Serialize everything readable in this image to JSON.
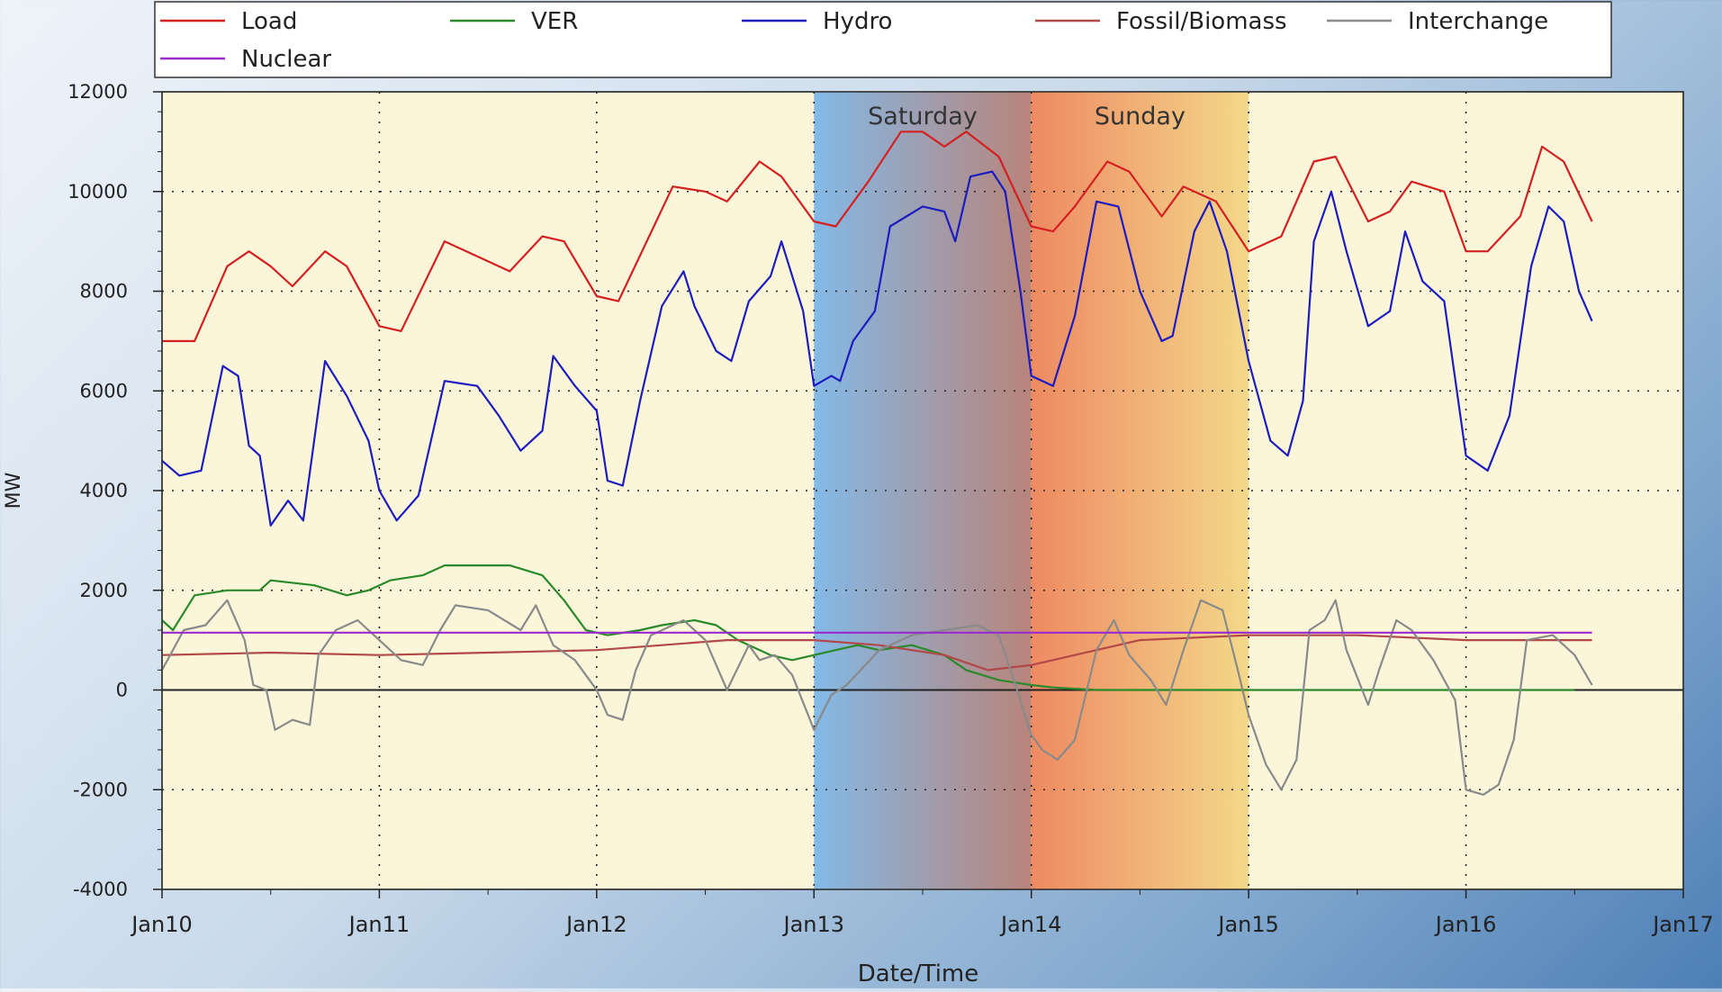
{
  "chart_data": {
    "type": "line",
    "xlabel": "Date/Time",
    "ylabel": "MW",
    "x_ticks": [
      "Jan10",
      "Jan11",
      "Jan12",
      "Jan13",
      "Jan14",
      "Jan15",
      "Jan16",
      "Jan17"
    ],
    "xlim": [
      0,
      7
    ],
    "ylim": [
      -4000,
      12000
    ],
    "y_ticks": [
      12000,
      10000,
      8000,
      6000,
      4000,
      2000,
      0,
      -2000,
      -4000
    ],
    "grid": "dotted",
    "legend_position": "top",
    "background_color": "#fbf6da",
    "zero_line": 0,
    "annotations": [
      {
        "label": "Saturday",
        "start": 3,
        "end": 4,
        "color_from": "#84b9e6",
        "color_to": "#b8847a"
      },
      {
        "label": "Sunday",
        "start": 4,
        "end": 5,
        "color_from": "#ee8a62",
        "color_to": "#f3d88a"
      }
    ],
    "series": [
      {
        "name": "Load",
        "color": "#d42020",
        "points": [
          [
            0,
            7000
          ],
          [
            0.15,
            7000
          ],
          [
            0.3,
            8500
          ],
          [
            0.4,
            8800
          ],
          [
            0.5,
            8500
          ],
          [
            0.6,
            8100
          ],
          [
            0.75,
            8800
          ],
          [
            0.85,
            8500
          ],
          [
            1.0,
            7300
          ],
          [
            1.1,
            7200
          ],
          [
            1.3,
            9000
          ],
          [
            1.45,
            8700
          ],
          [
            1.6,
            8400
          ],
          [
            1.75,
            9100
          ],
          [
            1.85,
            9000
          ],
          [
            2.0,
            7900
          ],
          [
            2.1,
            7800
          ],
          [
            2.35,
            10100
          ],
          [
            2.5,
            10000
          ],
          [
            2.6,
            9800
          ],
          [
            2.75,
            10600
          ],
          [
            2.85,
            10300
          ],
          [
            3.0,
            9400
          ],
          [
            3.1,
            9300
          ],
          [
            3.25,
            10200
          ],
          [
            3.4,
            11200
          ],
          [
            3.5,
            11200
          ],
          [
            3.6,
            10900
          ],
          [
            3.7,
            11200
          ],
          [
            3.85,
            10700
          ],
          [
            4.0,
            9300
          ],
          [
            4.1,
            9200
          ],
          [
            4.2,
            9700
          ],
          [
            4.35,
            10600
          ],
          [
            4.45,
            10400
          ],
          [
            4.6,
            9500
          ],
          [
            4.7,
            10100
          ],
          [
            4.85,
            9800
          ],
          [
            5.0,
            8800
          ],
          [
            5.15,
            9100
          ],
          [
            5.3,
            10600
          ],
          [
            5.4,
            10700
          ],
          [
            5.55,
            9400
          ],
          [
            5.65,
            9600
          ],
          [
            5.75,
            10200
          ],
          [
            5.9,
            10000
          ],
          [
            6.0,
            8800
          ],
          [
            6.1,
            8800
          ],
          [
            6.25,
            9500
          ],
          [
            6.35,
            10900
          ],
          [
            6.45,
            10600
          ],
          [
            6.58,
            9400
          ]
        ]
      },
      {
        "name": "VER",
        "color": "#2a8a2a",
        "points": [
          [
            0,
            1400
          ],
          [
            0.05,
            1200
          ],
          [
            0.15,
            1900
          ],
          [
            0.3,
            2000
          ],
          [
            0.45,
            2000
          ],
          [
            0.5,
            2200
          ],
          [
            0.7,
            2100
          ],
          [
            0.85,
            1900
          ],
          [
            0.95,
            2000
          ],
          [
            1.05,
            2200
          ],
          [
            1.2,
            2300
          ],
          [
            1.3,
            2500
          ],
          [
            1.45,
            2500
          ],
          [
            1.6,
            2500
          ],
          [
            1.75,
            2300
          ],
          [
            1.85,
            1800
          ],
          [
            1.95,
            1200
          ],
          [
            2.05,
            1100
          ],
          [
            2.2,
            1200
          ],
          [
            2.3,
            1300
          ],
          [
            2.45,
            1400
          ],
          [
            2.55,
            1300
          ],
          [
            2.65,
            1000
          ],
          [
            2.8,
            700
          ],
          [
            2.9,
            600
          ],
          [
            3.0,
            700
          ],
          [
            3.1,
            800
          ],
          [
            3.2,
            900
          ],
          [
            3.3,
            800
          ],
          [
            3.45,
            900
          ],
          [
            3.6,
            700
          ],
          [
            3.7,
            400
          ],
          [
            3.85,
            200
          ],
          [
            4.0,
            100
          ],
          [
            4.1,
            50
          ],
          [
            4.3,
            0
          ],
          [
            4.6,
            0
          ],
          [
            5.0,
            0
          ],
          [
            5.5,
            0
          ],
          [
            6.0,
            0
          ],
          [
            6.5,
            0
          ]
        ]
      },
      {
        "name": "Hydro",
        "color": "#1c1cc0",
        "points": [
          [
            0,
            4600
          ],
          [
            0.08,
            4300
          ],
          [
            0.18,
            4400
          ],
          [
            0.28,
            6500
          ],
          [
            0.35,
            6300
          ],
          [
            0.4,
            4900
          ],
          [
            0.45,
            4700
          ],
          [
            0.5,
            3300
          ],
          [
            0.58,
            3800
          ],
          [
            0.65,
            3400
          ],
          [
            0.75,
            6600
          ],
          [
            0.85,
            5900
          ],
          [
            0.95,
            5000
          ],
          [
            1.0,
            4000
          ],
          [
            1.08,
            3400
          ],
          [
            1.18,
            3900
          ],
          [
            1.3,
            6200
          ],
          [
            1.45,
            6100
          ],
          [
            1.55,
            5500
          ],
          [
            1.65,
            4800
          ],
          [
            1.75,
            5200
          ],
          [
            1.8,
            6700
          ],
          [
            1.9,
            6100
          ],
          [
            2.0,
            5600
          ],
          [
            2.05,
            4200
          ],
          [
            2.12,
            4100
          ],
          [
            2.2,
            5800
          ],
          [
            2.3,
            7700
          ],
          [
            2.4,
            8400
          ],
          [
            2.45,
            7700
          ],
          [
            2.55,
            6800
          ],
          [
            2.62,
            6600
          ],
          [
            2.7,
            7800
          ],
          [
            2.8,
            8300
          ],
          [
            2.85,
            9000
          ],
          [
            2.95,
            7600
          ],
          [
            3.0,
            6100
          ],
          [
            3.08,
            6300
          ],
          [
            3.12,
            6200
          ],
          [
            3.18,
            7000
          ],
          [
            3.28,
            7600
          ],
          [
            3.35,
            9300
          ],
          [
            3.5,
            9700
          ],
          [
            3.6,
            9600
          ],
          [
            3.65,
            9000
          ],
          [
            3.72,
            10300
          ],
          [
            3.82,
            10400
          ],
          [
            3.88,
            10000
          ],
          [
            3.95,
            8000
          ],
          [
            4.0,
            6300
          ],
          [
            4.1,
            6100
          ],
          [
            4.2,
            7500
          ],
          [
            4.3,
            9800
          ],
          [
            4.4,
            9700
          ],
          [
            4.5,
            8000
          ],
          [
            4.6,
            7000
          ],
          [
            4.65,
            7100
          ],
          [
            4.75,
            9200
          ],
          [
            4.82,
            9800
          ],
          [
            4.9,
            8800
          ],
          [
            5.0,
            6600
          ],
          [
            5.1,
            5000
          ],
          [
            5.18,
            4700
          ],
          [
            5.25,
            5800
          ],
          [
            5.3,
            9000
          ],
          [
            5.38,
            10000
          ],
          [
            5.45,
            8800
          ],
          [
            5.55,
            7300
          ],
          [
            5.65,
            7600
          ],
          [
            5.72,
            9200
          ],
          [
            5.8,
            8200
          ],
          [
            5.9,
            7800
          ],
          [
            6.0,
            4700
          ],
          [
            6.1,
            4400
          ],
          [
            6.2,
            5500
          ],
          [
            6.3,
            8500
          ],
          [
            6.38,
            9700
          ],
          [
            6.45,
            9400
          ],
          [
            6.52,
            8000
          ],
          [
            6.58,
            7400
          ]
        ]
      },
      {
        "name": "Fossil/Biomass",
        "color": "#b24848",
        "points": [
          [
            0,
            700
          ],
          [
            0.5,
            750
          ],
          [
            1.0,
            700
          ],
          [
            1.5,
            750
          ],
          [
            2.0,
            800
          ],
          [
            2.3,
            900
          ],
          [
            2.6,
            1000
          ],
          [
            3.0,
            1000
          ],
          [
            3.3,
            900
          ],
          [
            3.6,
            700
          ],
          [
            3.8,
            400
          ],
          [
            4.0,
            500
          ],
          [
            4.2,
            700
          ],
          [
            4.5,
            1000
          ],
          [
            5.0,
            1100
          ],
          [
            5.5,
            1100
          ],
          [
            6.0,
            1000
          ],
          [
            6.58,
            1000
          ]
        ]
      },
      {
        "name": "Interchange",
        "color": "#8a8a8a",
        "points": [
          [
            0,
            400
          ],
          [
            0.1,
            1200
          ],
          [
            0.2,
            1300
          ],
          [
            0.3,
            1800
          ],
          [
            0.38,
            1000
          ],
          [
            0.42,
            100
          ],
          [
            0.48,
            0
          ],
          [
            0.52,
            -800
          ],
          [
            0.6,
            -600
          ],
          [
            0.68,
            -700
          ],
          [
            0.72,
            700
          ],
          [
            0.8,
            1200
          ],
          [
            0.9,
            1400
          ],
          [
            1.0,
            1000
          ],
          [
            1.1,
            600
          ],
          [
            1.2,
            500
          ],
          [
            1.28,
            1200
          ],
          [
            1.35,
            1700
          ],
          [
            1.5,
            1600
          ],
          [
            1.65,
            1200
          ],
          [
            1.72,
            1700
          ],
          [
            1.8,
            900
          ],
          [
            1.9,
            600
          ],
          [
            2.0,
            0
          ],
          [
            2.05,
            -500
          ],
          [
            2.12,
            -600
          ],
          [
            2.18,
            400
          ],
          [
            2.25,
            1100
          ],
          [
            2.4,
            1400
          ],
          [
            2.5,
            1000
          ],
          [
            2.6,
            0
          ],
          [
            2.7,
            900
          ],
          [
            2.75,
            600
          ],
          [
            2.82,
            700
          ],
          [
            2.9,
            300
          ],
          [
            3.0,
            -800
          ],
          [
            3.08,
            -100
          ],
          [
            3.15,
            100
          ],
          [
            3.3,
            800
          ],
          [
            3.45,
            1100
          ],
          [
            3.6,
            1200
          ],
          [
            3.75,
            1300
          ],
          [
            3.85,
            1100
          ],
          [
            3.92,
            200
          ],
          [
            4.0,
            -900
          ],
          [
            4.05,
            -1200
          ],
          [
            4.12,
            -1400
          ],
          [
            4.2,
            -1000
          ],
          [
            4.3,
            800
          ],
          [
            4.38,
            1400
          ],
          [
            4.45,
            700
          ],
          [
            4.55,
            200
          ],
          [
            4.62,
            -300
          ],
          [
            4.7,
            800
          ],
          [
            4.78,
            1800
          ],
          [
            4.88,
            1600
          ],
          [
            4.95,
            400
          ],
          [
            5.0,
            -500
          ],
          [
            5.08,
            -1500
          ],
          [
            5.15,
            -2000
          ],
          [
            5.22,
            -1400
          ],
          [
            5.28,
            1200
          ],
          [
            5.35,
            1400
          ],
          [
            5.4,
            1800
          ],
          [
            5.45,
            800
          ],
          [
            5.55,
            -300
          ],
          [
            5.6,
            400
          ],
          [
            5.68,
            1400
          ],
          [
            5.75,
            1200
          ],
          [
            5.85,
            600
          ],
          [
            5.95,
            -200
          ],
          [
            6.0,
            -2000
          ],
          [
            6.08,
            -2100
          ],
          [
            6.15,
            -1900
          ],
          [
            6.22,
            -1000
          ],
          [
            6.28,
            1000
          ],
          [
            6.4,
            1100
          ],
          [
            6.5,
            700
          ],
          [
            6.58,
            100
          ]
        ]
      },
      {
        "name": "Nuclear",
        "color": "#9a2ad0",
        "points": [
          [
            0,
            1150
          ],
          [
            6.58,
            1150
          ]
        ]
      }
    ]
  }
}
